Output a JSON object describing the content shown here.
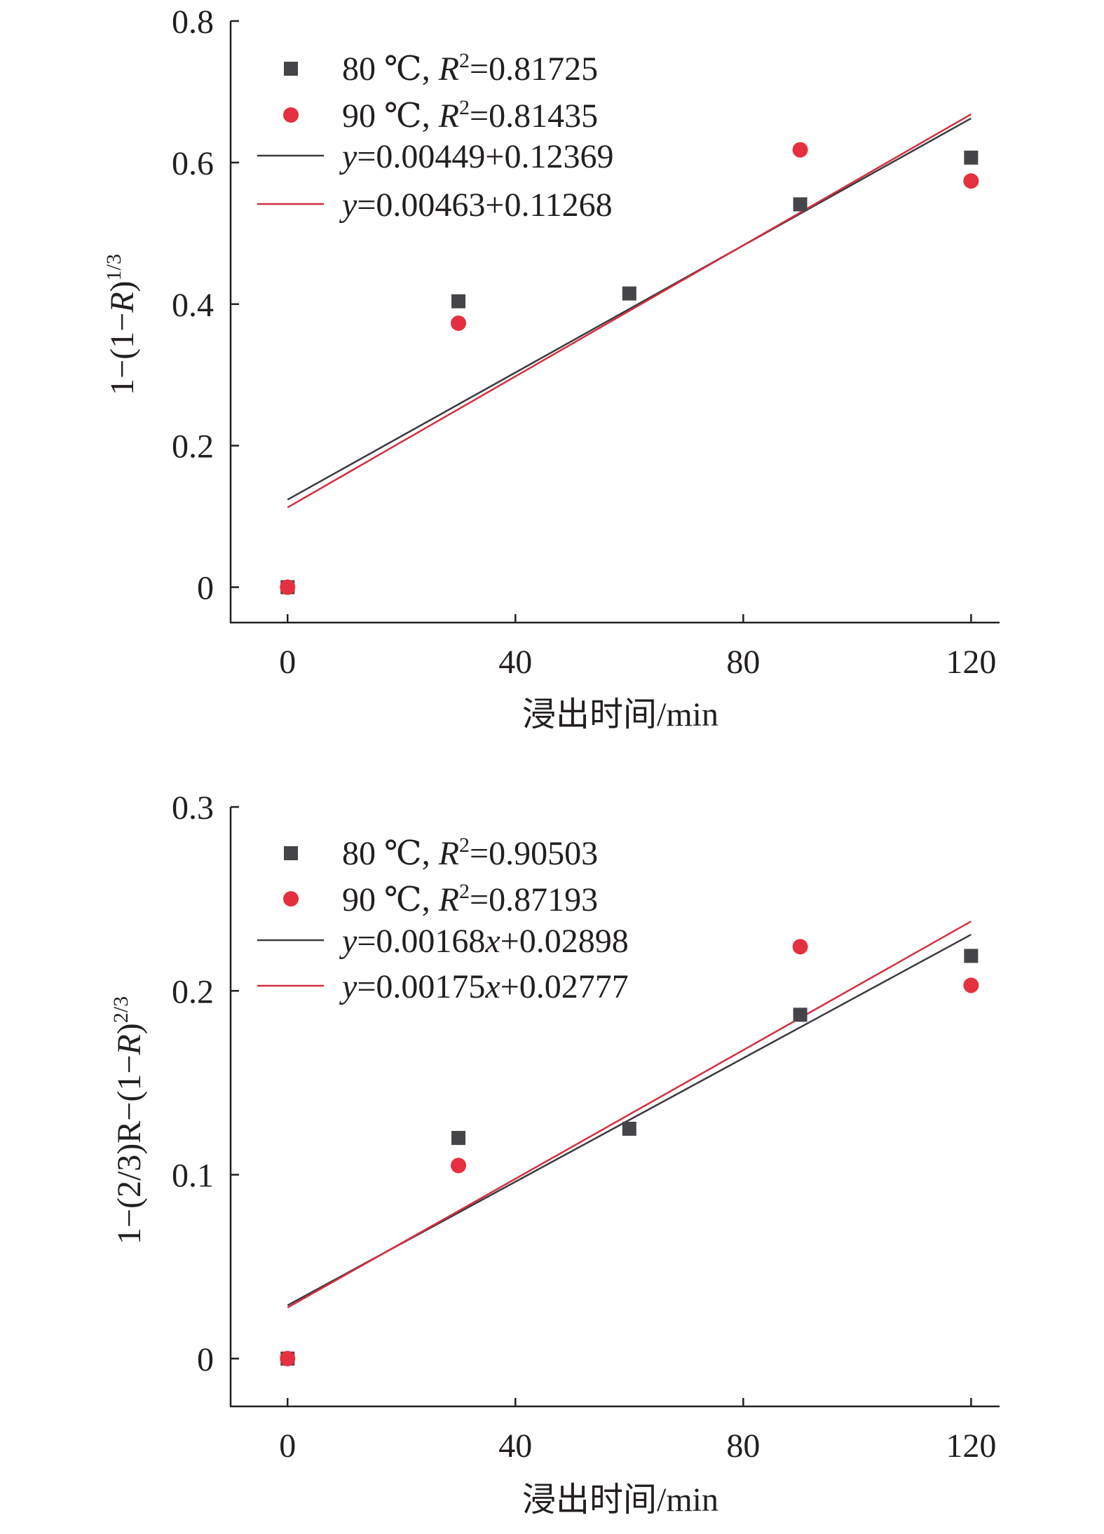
{
  "colors": {
    "series_80": "#454549",
    "series_90": "#e5303f",
    "fit_80": "#3a3a3e",
    "fit_90": "#d32f3d",
    "axis": "#231f20"
  },
  "chart_data": [
    {
      "type": "scatter",
      "xlabel": "浸出时间/min",
      "ylabel": "1−(1−R)1/3",
      "ylabel_parts": {
        "prefix": "1−(1−",
        "italic": "R",
        "suffix": ")",
        "sup": "1/3"
      },
      "xlim": [
        -10,
        125
      ],
      "ylim": [
        -0.05,
        0.8
      ],
      "xticks": [
        0,
        40,
        80,
        120
      ],
      "xtick_labels": [
        "0",
        "40",
        "80",
        "120"
      ],
      "yticks": [
        0,
        0.2,
        0.4,
        0.6,
        0.8
      ],
      "ytick_labels": [
        "0",
        "0.2",
        "0.4",
        "0.6",
        "0.8"
      ],
      "grid": false,
      "legend_position": "top-left",
      "series": [
        {
          "name": "80 ℃, R2=0.81725",
          "legend": {
            "temp": "80 ℃, ",
            "r": "R",
            "sup": "2",
            "value": "=0.81725"
          },
          "marker": "square",
          "color_key": "series_80",
          "x": [
            0,
            30,
            60,
            90,
            120
          ],
          "y": [
            0.0,
            0.404,
            0.415,
            0.541,
            0.607
          ]
        },
        {
          "name": "90 ℃, R2=0.81435",
          "legend": {
            "temp": "90 ℃, ",
            "r": "R",
            "sup": "2",
            "value": "=0.81435"
          },
          "marker": "circle",
          "color_key": "series_90",
          "x": [
            0,
            30,
            90,
            120
          ],
          "y": [
            0.0,
            0.373,
            0.618,
            0.574
          ]
        }
      ],
      "fits": [
        {
          "name": "y=0.00449+0.12369",
          "legend": {
            "y": "y",
            "rest": "=0.00449+0.12369"
          },
          "slope": 0.00449,
          "intercept": 0.12369,
          "x_range": [
            0,
            120
          ],
          "color_key": "fit_80"
        },
        {
          "name": "y=0.00463+0.11268",
          "legend": {
            "y": "y",
            "rest": "=0.00463+0.11268"
          },
          "slope": 0.00463,
          "intercept": 0.11268,
          "x_range": [
            0,
            120
          ],
          "color_key": "fit_90"
        }
      ]
    },
    {
      "type": "scatter",
      "xlabel": "浸出时间/min",
      "ylabel": "1−(2/3)R−(1−R)2/3",
      "ylabel_parts": {
        "prefix": "1−(2/3)R−(1−",
        "italic": "R",
        "suffix": ")",
        "sup": "2/3"
      },
      "xlim": [
        -10,
        125
      ],
      "ylim": [
        -0.026,
        0.3
      ],
      "xticks": [
        0,
        40,
        80,
        120
      ],
      "xtick_labels": [
        "0",
        "40",
        "80",
        "120"
      ],
      "yticks": [
        0,
        0.1,
        0.2,
        0.3
      ],
      "ytick_labels": [
        "0",
        "0.1",
        "0.2",
        "0.3"
      ],
      "grid": false,
      "legend_position": "top-left",
      "series": [
        {
          "name": "80 ℃, R2=0.90503",
          "legend": {
            "temp": "80 ℃, ",
            "r": "R",
            "sup": "2",
            "value": "=0.90503"
          },
          "marker": "square",
          "color_key": "series_80",
          "x": [
            0,
            30,
            60,
            90,
            120
          ],
          "y": [
            0.0,
            0.12,
            0.125,
            0.187,
            0.219
          ]
        },
        {
          "name": "90 ℃, R2=0.87193",
          "legend": {
            "temp": "90 ℃, ",
            "r": "R",
            "sup": "2",
            "value": "=0.87193"
          },
          "marker": "circle",
          "color_key": "series_90",
          "x": [
            0,
            30,
            90,
            120
          ],
          "y": [
            0.0,
            0.105,
            0.224,
            0.203
          ]
        }
      ],
      "fits": [
        {
          "name": "y=0.00168x+0.02898",
          "legend": {
            "y": "y",
            "rest": "=0.00168",
            "x": "x",
            "rest2": "+0.02898"
          },
          "slope": 0.00168,
          "intercept": 0.02898,
          "x_range": [
            0,
            120
          ],
          "color_key": "fit_80"
        },
        {
          "name": "y=0.00175x+0.02777",
          "legend": {
            "y": "y",
            "rest": "=0.00175",
            "x": "x",
            "rest2": "+0.02777"
          },
          "slope": 0.00175,
          "intercept": 0.02777,
          "x_range": [
            0,
            120
          ],
          "color_key": "fit_90"
        }
      ]
    }
  ]
}
